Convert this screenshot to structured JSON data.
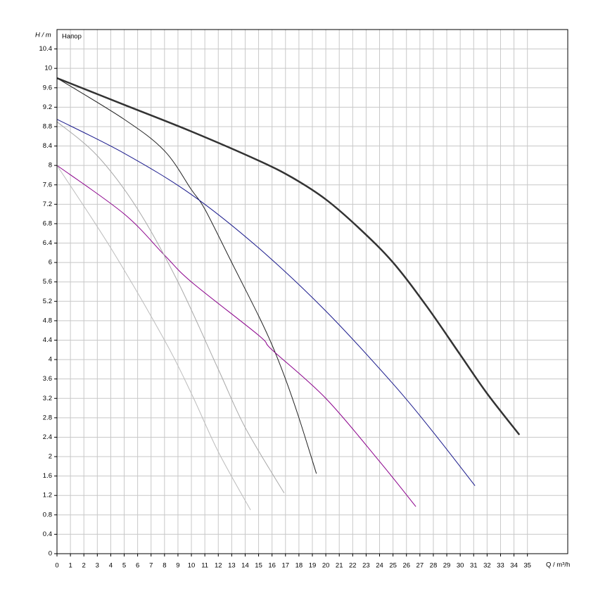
{
  "chart_data": {
    "type": "line",
    "y_label": "H / m",
    "x_label": "Q / m³/h",
    "annotation": "Напор",
    "xlim": [
      0,
      38
    ],
    "ylim": [
      0,
      10.8
    ],
    "xticks": [
      0,
      1,
      2,
      3,
      4,
      5,
      6,
      7,
      8,
      9,
      10,
      11,
      12,
      13,
      14,
      15,
      16,
      17,
      18,
      19,
      20,
      21,
      22,
      23,
      24,
      25,
      26,
      27,
      28,
      29,
      30,
      31,
      32,
      33,
      34,
      35
    ],
    "yticks": [
      0,
      0.4,
      0.8,
      1.2,
      1.6,
      2,
      2.4,
      2.8,
      3.2,
      3.6,
      4,
      4.4,
      4.8,
      5.2,
      5.6,
      6,
      6.4,
      6.8,
      7.2,
      7.6,
      8,
      8.4,
      8.8,
      9.2,
      9.6,
      10,
      10.4
    ],
    "grid": true,
    "series": [
      {
        "color": "#333333",
        "width": 2.5,
        "x": [
          0,
          5,
          10,
          15,
          17.5,
          20,
          22.5,
          25,
          27.5,
          30,
          32,
          34.4
        ],
        "values": [
          9.8,
          9.25,
          8.7,
          8.1,
          7.75,
          7.3,
          6.7,
          6.0,
          5.1,
          4.1,
          3.3,
          2.45
        ]
      },
      {
        "color": "#222222",
        "width": 1,
        "x": [
          0,
          5,
          8,
          10,
          11,
          13,
          15,
          16,
          17,
          18,
          19.3
        ],
        "values": [
          9.8,
          8.95,
          8.3,
          7.5,
          7.1,
          6.0,
          4.9,
          4.3,
          3.6,
          2.8,
          1.65
        ]
      },
      {
        "color": "#1a1a8c",
        "width": 1,
        "x": [
          0,
          5,
          10,
          15,
          20,
          25,
          28,
          31.1
        ],
        "values": [
          8.95,
          8.25,
          7.4,
          6.3,
          5.0,
          3.5,
          2.5,
          1.4
        ]
      },
      {
        "color": "#8b008b",
        "width": 1,
        "x": [
          0,
          5,
          8,
          10,
          15,
          16,
          20,
          24,
          26.7
        ],
        "values": [
          8.0,
          7.0,
          6.15,
          5.6,
          4.5,
          4.2,
          3.2,
          1.9,
          0.97
        ]
      },
      {
        "color": "#a8a8a8",
        "width": 1,
        "x": [
          0,
          3,
          6,
          9,
          12,
          14,
          16.9
        ],
        "values": [
          8.9,
          8.2,
          7.1,
          5.6,
          3.8,
          2.6,
          1.25
        ]
      },
      {
        "color": "#bcbcbc",
        "width": 1,
        "x": [
          0,
          4,
          8,
          10,
          12,
          14.4
        ],
        "values": [
          8.0,
          6.3,
          4.4,
          3.3,
          2.1,
          0.9
        ]
      }
    ]
  }
}
